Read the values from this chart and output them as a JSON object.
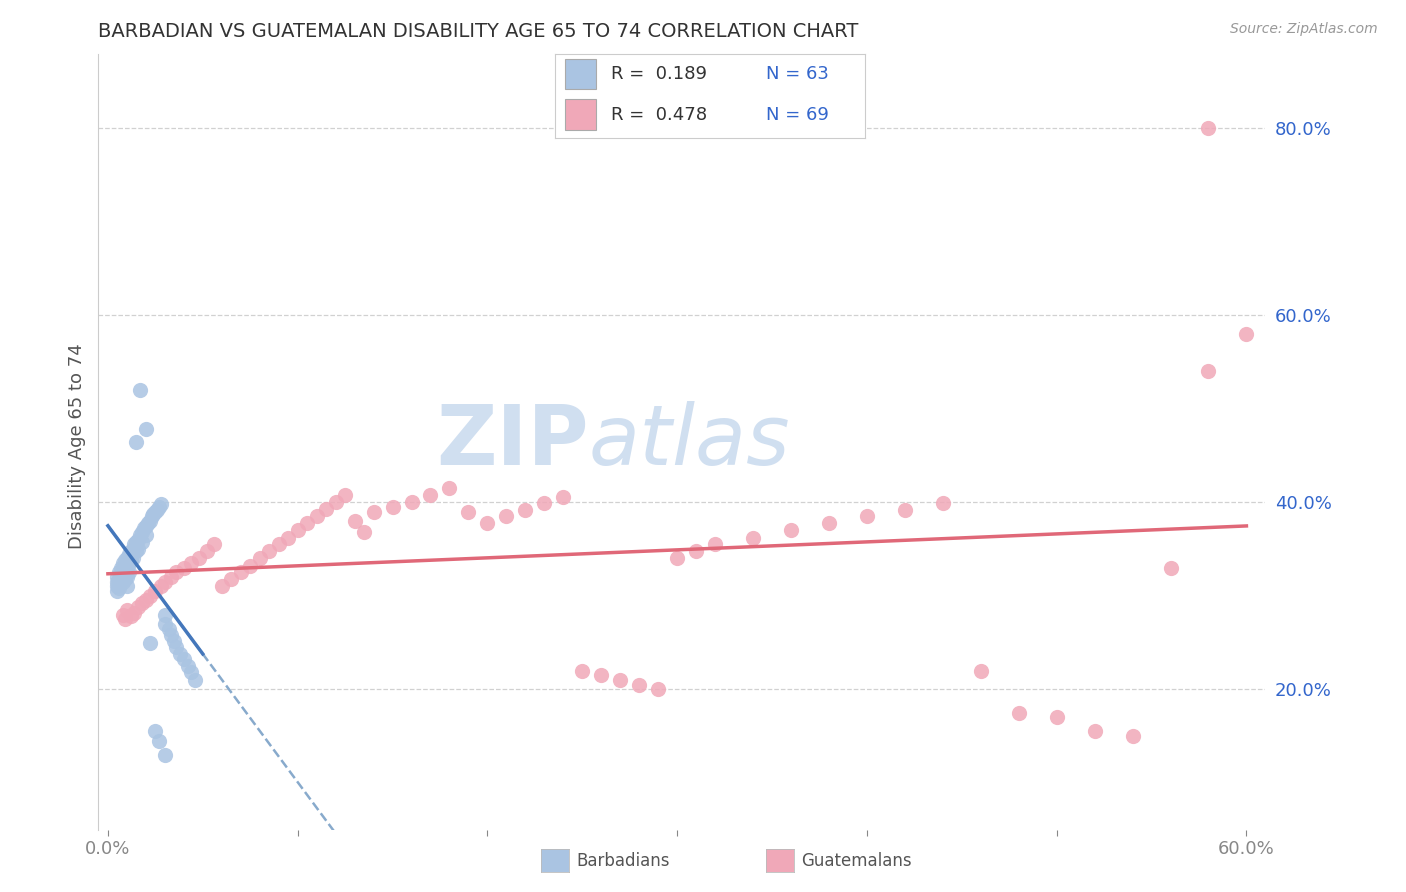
{
  "title": "BARBADIAN VS GUATEMALAN DISABILITY AGE 65 TO 74 CORRELATION CHART",
  "source": "Source: ZipAtlas.com",
  "ylabel": "Disability Age 65 to 74",
  "xlim": [
    -0.005,
    0.61
  ],
  "ylim": [
    0.05,
    0.88
  ],
  "xtick_positions": [
    0.0,
    0.1,
    0.2,
    0.3,
    0.4,
    0.5,
    0.6
  ],
  "xticklabels": [
    "0.0%",
    "",
    "",
    "",
    "",
    "",
    "60.0%"
  ],
  "ytick_positions": [
    0.2,
    0.4,
    0.6,
    0.8
  ],
  "ytick_labels": [
    "20.0%",
    "40.0%",
    "60.0%",
    "80.0%"
  ],
  "legend_r1": "R =  0.189",
  "legend_n1": "N = 63",
  "legend_r2": "R =  0.478",
  "legend_n2": "N = 69",
  "blue_color": "#aac4e2",
  "pink_color": "#f0a8b8",
  "blue_line_color": "#4477bb",
  "pink_line_color": "#e06878",
  "blue_dash_color": "#88aacc",
  "r_n_color": "#3366cc",
  "watermark_color": "#d0dff0",
  "watermark": "ZIPatlas",
  "background": "#ffffff",
  "barbadians_x": [
    0.005,
    0.005,
    0.005,
    0.005,
    0.006,
    0.006,
    0.006,
    0.007,
    0.007,
    0.008,
    0.008,
    0.008,
    0.009,
    0.009,
    0.009,
    0.01,
    0.01,
    0.01,
    0.01,
    0.011,
    0.011,
    0.011,
    0.012,
    0.012,
    0.013,
    0.013,
    0.014,
    0.015,
    0.015,
    0.016,
    0.016,
    0.017,
    0.018,
    0.018,
    0.019,
    0.02,
    0.02,
    0.021,
    0.022,
    0.023,
    0.024,
    0.025,
    0.026,
    0.027,
    0.028,
    0.03,
    0.03,
    0.032,
    0.033,
    0.035,
    0.036,
    0.038,
    0.04,
    0.042,
    0.044,
    0.046,
    0.015,
    0.017,
    0.02,
    0.022,
    0.025,
    0.027,
    0.03
  ],
  "barbadians_y": [
    0.32,
    0.315,
    0.31,
    0.305,
    0.325,
    0.318,
    0.308,
    0.33,
    0.32,
    0.335,
    0.325,
    0.315,
    0.338,
    0.328,
    0.318,
    0.34,
    0.33,
    0.32,
    0.31,
    0.345,
    0.335,
    0.325,
    0.348,
    0.338,
    0.35,
    0.34,
    0.355,
    0.358,
    0.348,
    0.36,
    0.35,
    0.365,
    0.368,
    0.358,
    0.372,
    0.375,
    0.365,
    0.378,
    0.38,
    0.385,
    0.388,
    0.39,
    0.392,
    0.395,
    0.398,
    0.28,
    0.27,
    0.265,
    0.258,
    0.252,
    0.245,
    0.238,
    0.232,
    0.225,
    0.218,
    0.21,
    0.465,
    0.52,
    0.478,
    0.25,
    0.155,
    0.145,
    0.13
  ],
  "guatemalans_x": [
    0.008,
    0.009,
    0.01,
    0.012,
    0.014,
    0.016,
    0.018,
    0.02,
    0.022,
    0.025,
    0.028,
    0.03,
    0.033,
    0.036,
    0.04,
    0.044,
    0.048,
    0.052,
    0.056,
    0.06,
    0.065,
    0.07,
    0.075,
    0.08,
    0.085,
    0.09,
    0.095,
    0.1,
    0.105,
    0.11,
    0.115,
    0.12,
    0.125,
    0.13,
    0.135,
    0.14,
    0.15,
    0.16,
    0.17,
    0.18,
    0.19,
    0.2,
    0.21,
    0.22,
    0.23,
    0.24,
    0.25,
    0.26,
    0.27,
    0.28,
    0.29,
    0.3,
    0.31,
    0.32,
    0.34,
    0.36,
    0.38,
    0.4,
    0.42,
    0.44,
    0.46,
    0.48,
    0.5,
    0.52,
    0.54,
    0.56,
    0.58,
    0.6,
    0.58
  ],
  "guatemalans_y": [
    0.28,
    0.275,
    0.285,
    0.278,
    0.282,
    0.288,
    0.292,
    0.295,
    0.3,
    0.305,
    0.31,
    0.315,
    0.32,
    0.325,
    0.33,
    0.335,
    0.34,
    0.348,
    0.355,
    0.31,
    0.318,
    0.325,
    0.332,
    0.34,
    0.348,
    0.355,
    0.362,
    0.37,
    0.378,
    0.385,
    0.393,
    0.4,
    0.408,
    0.38,
    0.368,
    0.39,
    0.395,
    0.4,
    0.408,
    0.415,
    0.39,
    0.378,
    0.385,
    0.392,
    0.399,
    0.406,
    0.22,
    0.215,
    0.21,
    0.205,
    0.2,
    0.34,
    0.348,
    0.355,
    0.362,
    0.37,
    0.378,
    0.385,
    0.392,
    0.399,
    0.22,
    0.175,
    0.17,
    0.155,
    0.15,
    0.33,
    0.54,
    0.58,
    0.8
  ]
}
